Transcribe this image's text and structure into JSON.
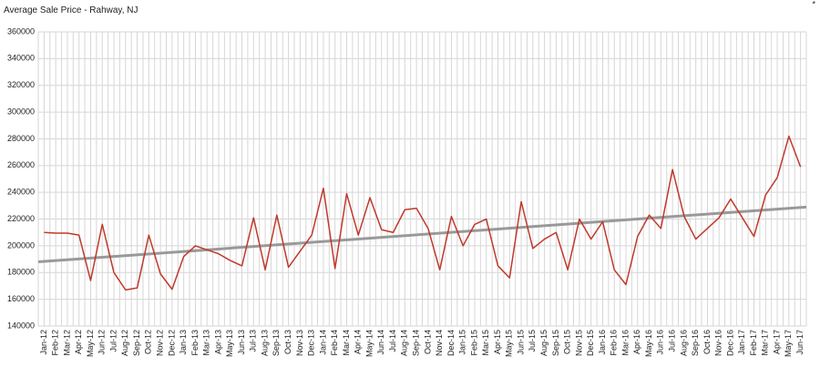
{
  "chart_data": {
    "type": "line",
    "title": "Average Sale Price - Rahway, NJ",
    "note": "*",
    "categories": [
      "Jan-12",
      "Feb-12",
      "Mar-12",
      "Apr-12",
      "May-12",
      "Jun-12",
      "Jul-12",
      "Aug-12",
      "Sep-12",
      "Oct-12",
      "Nov-12",
      "Dec-12",
      "Jan-13",
      "Feb-13",
      "Mar-13",
      "Apr-13",
      "May-13",
      "Jun-13",
      "Jul-13",
      "Aug-13",
      "Sep-13",
      "Oct-13",
      "Nov-13",
      "Dec-13",
      "Jan-14",
      "Feb-14",
      "Mar-14",
      "Apr-14",
      "May-14",
      "Jun-14",
      "Jul-14",
      "Aug-14",
      "Sep-14",
      "Oct-14",
      "Nov-14",
      "Dec-14",
      "Jan-15",
      "Feb-15",
      "Mar-15",
      "Apr-15",
      "May-15",
      "Jun-15",
      "Jul-15",
      "Aug-15",
      "Sep-15",
      "Oct-15",
      "Nov-15",
      "Dec-15",
      "Jan-16",
      "Feb-16",
      "Mar-16",
      "Apr-16",
      "May-16",
      "Jun-16",
      "Jul-16",
      "Aug-16",
      "Sep-16",
      "Oct-16",
      "Nov-16",
      "Dec-16",
      "Jan-17",
      "Feb-17",
      "Mar-17",
      "Apr-17",
      "May-17",
      "Jun-17"
    ],
    "series": [
      {
        "color": "#c0392b",
        "values": [
          210000,
          209500,
          209500,
          208000,
          174000,
          216000,
          180000,
          167000,
          168500,
          208000,
          179000,
          167500,
          192000,
          200000,
          197000,
          194000,
          189000,
          185000,
          221000,
          182000,
          223000,
          184000,
          196000,
          208000,
          243000,
          183000,
          239000,
          208000,
          236000,
          212000,
          210000,
          227000,
          228000,
          213000,
          182000,
          222000,
          200000,
          216000,
          220000,
          185000,
          176000,
          233000,
          198000,
          205000,
          210000,
          182000,
          220000,
          205000,
          218000,
          182000,
          171000,
          207000,
          223000,
          213000,
          257000,
          222000,
          205000,
          213000,
          221000,
          235000,
          221000,
          207000,
          238000,
          251000,
          282000,
          259000
        ]
      }
    ],
    "trendline": {
      "color": "#999999",
      "start": 188000,
      "end": 229000
    },
    "ylim": [
      140000,
      360000
    ],
    "yticks": [
      140000,
      160000,
      180000,
      200000,
      220000,
      240000,
      260000,
      280000,
      300000,
      320000,
      340000,
      360000
    ],
    "grid": true
  }
}
